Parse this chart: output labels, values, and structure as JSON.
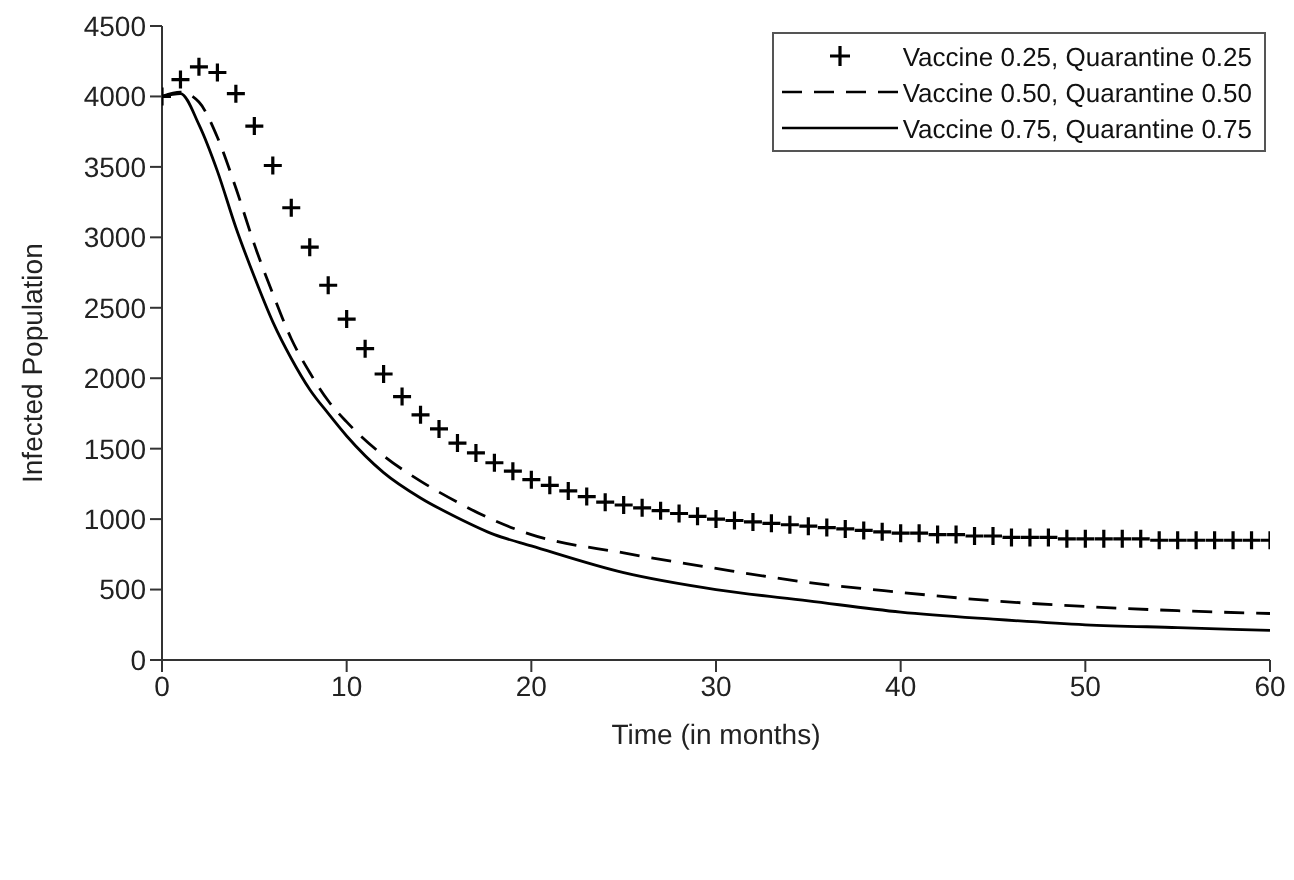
{
  "chart_data": {
    "type": "line",
    "xlabel": "Time (in months)",
    "ylabel": "Infected Population",
    "xlim": [
      0,
      60
    ],
    "xticks": [
      0,
      10,
      20,
      30,
      40,
      50,
      60
    ],
    "ylim": [
      0,
      4500
    ],
    "yticks": [
      0,
      500,
      1000,
      1500,
      2000,
      2500,
      3000,
      3500,
      4000,
      4500
    ],
    "legend": "top right",
    "grid": false,
    "series": [
      {
        "name": "Vaccine 0.25, Quarantine 0.25",
        "type": "scatter",
        "marker": "cross",
        "color": "#000000",
        "x": [
          0,
          1,
          2,
          3,
          4,
          5,
          6,
          7,
          8,
          9,
          10,
          11,
          12,
          13,
          14,
          15,
          16,
          17,
          18,
          19,
          20,
          21,
          22,
          23,
          24,
          25,
          26,
          27,
          28,
          29,
          30,
          31,
          32,
          33,
          34,
          35,
          36,
          37,
          38,
          39,
          40,
          41,
          42,
          43,
          44,
          45,
          46,
          47,
          48,
          49,
          50,
          51,
          52,
          53,
          54,
          55,
          56,
          57,
          58,
          59,
          60
        ],
        "values": [
          4000,
          4120,
          4210,
          4170,
          4020,
          3790,
          3510,
          3210,
          2930,
          2660,
          2420,
          2210,
          2030,
          1870,
          1740,
          1640,
          1540,
          1470,
          1400,
          1340,
          1280,
          1240,
          1200,
          1160,
          1120,
          1100,
          1080,
          1060,
          1040,
          1020,
          1000,
          990,
          980,
          970,
          960,
          950,
          940,
          930,
          920,
          910,
          900,
          900,
          890,
          890,
          880,
          880,
          870,
          870,
          870,
          860,
          860,
          860,
          860,
          860,
          850,
          850,
          850,
          850,
          850,
          850,
          850
        ]
      },
      {
        "name": "Vaccine 0.50, Quarantine 0.50",
        "line_style": "dashed",
        "marker": "none",
        "color": "#000000",
        "x": [
          0,
          1,
          2,
          3,
          4,
          5,
          6,
          7,
          8,
          9,
          10,
          12,
          14,
          16,
          18,
          20,
          25,
          30,
          35,
          40,
          45,
          50,
          55,
          60
        ],
        "values": [
          4000,
          4030,
          3960,
          3710,
          3350,
          2950,
          2600,
          2280,
          2040,
          1840,
          1690,
          1450,
          1270,
          1120,
          990,
          890,
          760,
          650,
          550,
          480,
          420,
          380,
          350,
          330
        ]
      },
      {
        "name": "Vaccine 0.75, Quarantine 0.75",
        "line_style": "solid",
        "marker": "none",
        "color": "#000000",
        "x": [
          0,
          1,
          2,
          3,
          4,
          5,
          6,
          7,
          8,
          9,
          10,
          12,
          14,
          16,
          18,
          20,
          25,
          30,
          35,
          40,
          45,
          50,
          55,
          60
        ],
        "values": [
          4000,
          4020,
          3800,
          3470,
          3070,
          2720,
          2400,
          2140,
          1920,
          1750,
          1590,
          1330,
          1150,
          1010,
          890,
          810,
          620,
          500,
          420,
          340,
          290,
          250,
          230,
          210
        ]
      }
    ]
  }
}
